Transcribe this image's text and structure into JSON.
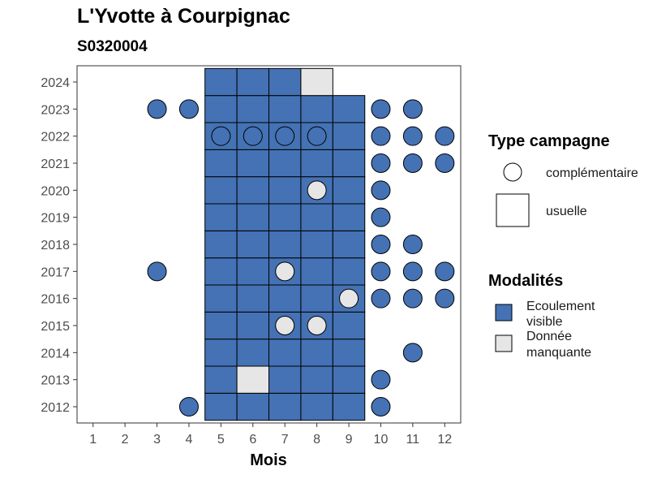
{
  "chart_data": {
    "type": "heatmap",
    "title": "L'Yvotte à Courpignac",
    "subtitle": "S0320004",
    "xlabel": "Mois",
    "ylabel": "",
    "x_ticks": [
      1,
      2,
      3,
      4,
      5,
      6,
      7,
      8,
      9,
      10,
      11,
      12
    ],
    "y_ticks": [
      2012,
      2013,
      2014,
      2015,
      2016,
      2017,
      2018,
      2019,
      2020,
      2021,
      2022,
      2023,
      2024
    ],
    "xlim": [
      0.5,
      12.5
    ],
    "ylim": [
      2011.4,
      2024.6
    ],
    "grid": false,
    "colors": {
      "Ecoulement visible": "#4472b4",
      "Donnée manquante": "#e6e6e6"
    },
    "legend": {
      "position": "right",
      "type_title": "Type campagne",
      "types": [
        "complémentaire",
        "usuelle"
      ],
      "modal_title": "Modalités",
      "modalites": [
        {
          "line1": "Ecoulement",
          "line2": "visible",
          "key": "Ecoulement visible"
        },
        {
          "line1": "Donnée",
          "line2": "manquante",
          "key": "Donnée manquante"
        }
      ]
    },
    "usuelle": [
      {
        "year": 2012,
        "months": [
          5,
          6,
          7,
          8,
          9
        ],
        "value": "Ecoulement visible"
      },
      {
        "year": 2013,
        "months": [
          5,
          7,
          8,
          9
        ],
        "value": "Ecoulement visible"
      },
      {
        "year": 2013,
        "months": [
          6
        ],
        "value": "Donnée manquante"
      },
      {
        "year": 2014,
        "months": [
          5,
          6,
          7,
          8,
          9
        ],
        "value": "Ecoulement visible"
      },
      {
        "year": 2015,
        "months": [
          5,
          6,
          7,
          8,
          9
        ],
        "value": "Ecoulement visible"
      },
      {
        "year": 2016,
        "months": [
          5,
          6,
          7,
          8,
          9
        ],
        "value": "Ecoulement visible"
      },
      {
        "year": 2017,
        "months": [
          5,
          6,
          7,
          8,
          9
        ],
        "value": "Ecoulement visible"
      },
      {
        "year": 2018,
        "months": [
          5,
          6,
          7,
          8,
          9
        ],
        "value": "Ecoulement visible"
      },
      {
        "year": 2019,
        "months": [
          5,
          6,
          7,
          8,
          9
        ],
        "value": "Ecoulement visible"
      },
      {
        "year": 2020,
        "months": [
          5,
          6,
          7,
          8,
          9
        ],
        "value": "Ecoulement visible"
      },
      {
        "year": 2021,
        "months": [
          5,
          6,
          7,
          8,
          9
        ],
        "value": "Ecoulement visible"
      },
      {
        "year": 2022,
        "months": [
          5,
          6,
          7,
          8,
          9
        ],
        "value": "Ecoulement visible"
      },
      {
        "year": 2023,
        "months": [
          5,
          6,
          7,
          8,
          9
        ],
        "value": "Ecoulement visible"
      },
      {
        "year": 2024,
        "months": [
          5,
          6,
          7
        ],
        "value": "Ecoulement visible"
      },
      {
        "year": 2024,
        "months": [
          8
        ],
        "value": "Donnée manquante"
      }
    ],
    "complementaire": [
      {
        "year": 2012,
        "months": [
          4,
          10
        ],
        "value": "Ecoulement visible"
      },
      {
        "year": 2013,
        "months": [
          10
        ],
        "value": "Ecoulement visible"
      },
      {
        "year": 2014,
        "months": [
          11
        ],
        "value": "Ecoulement visible"
      },
      {
        "year": 2015,
        "months": [
          7,
          8
        ],
        "value": "Donnée manquante"
      },
      {
        "year": 2016,
        "months": [
          10,
          11,
          12
        ],
        "value": "Ecoulement visible"
      },
      {
        "year": 2016,
        "months": [
          9
        ],
        "value": "Donnée manquante"
      },
      {
        "year": 2017,
        "months": [
          3,
          10,
          11,
          12
        ],
        "value": "Ecoulement visible"
      },
      {
        "year": 2017,
        "months": [
          7
        ],
        "value": "Donnée manquante"
      },
      {
        "year": 2018,
        "months": [
          10,
          11
        ],
        "value": "Ecoulement visible"
      },
      {
        "year": 2019,
        "months": [
          10
        ],
        "value": "Ecoulement visible"
      },
      {
        "year": 2020,
        "months": [
          10
        ],
        "value": "Ecoulement visible"
      },
      {
        "year": 2020,
        "months": [
          8
        ],
        "value": "Donnée manquante"
      },
      {
        "year": 2021,
        "months": [
          10,
          11,
          12
        ],
        "value": "Ecoulement visible"
      },
      {
        "year": 2022,
        "months": [
          5,
          6,
          7,
          8,
          10,
          11,
          12
        ],
        "value": "Ecoulement visible"
      },
      {
        "year": 2023,
        "months": [
          3,
          4,
          10,
          11
        ],
        "value": "Ecoulement visible"
      }
    ]
  }
}
